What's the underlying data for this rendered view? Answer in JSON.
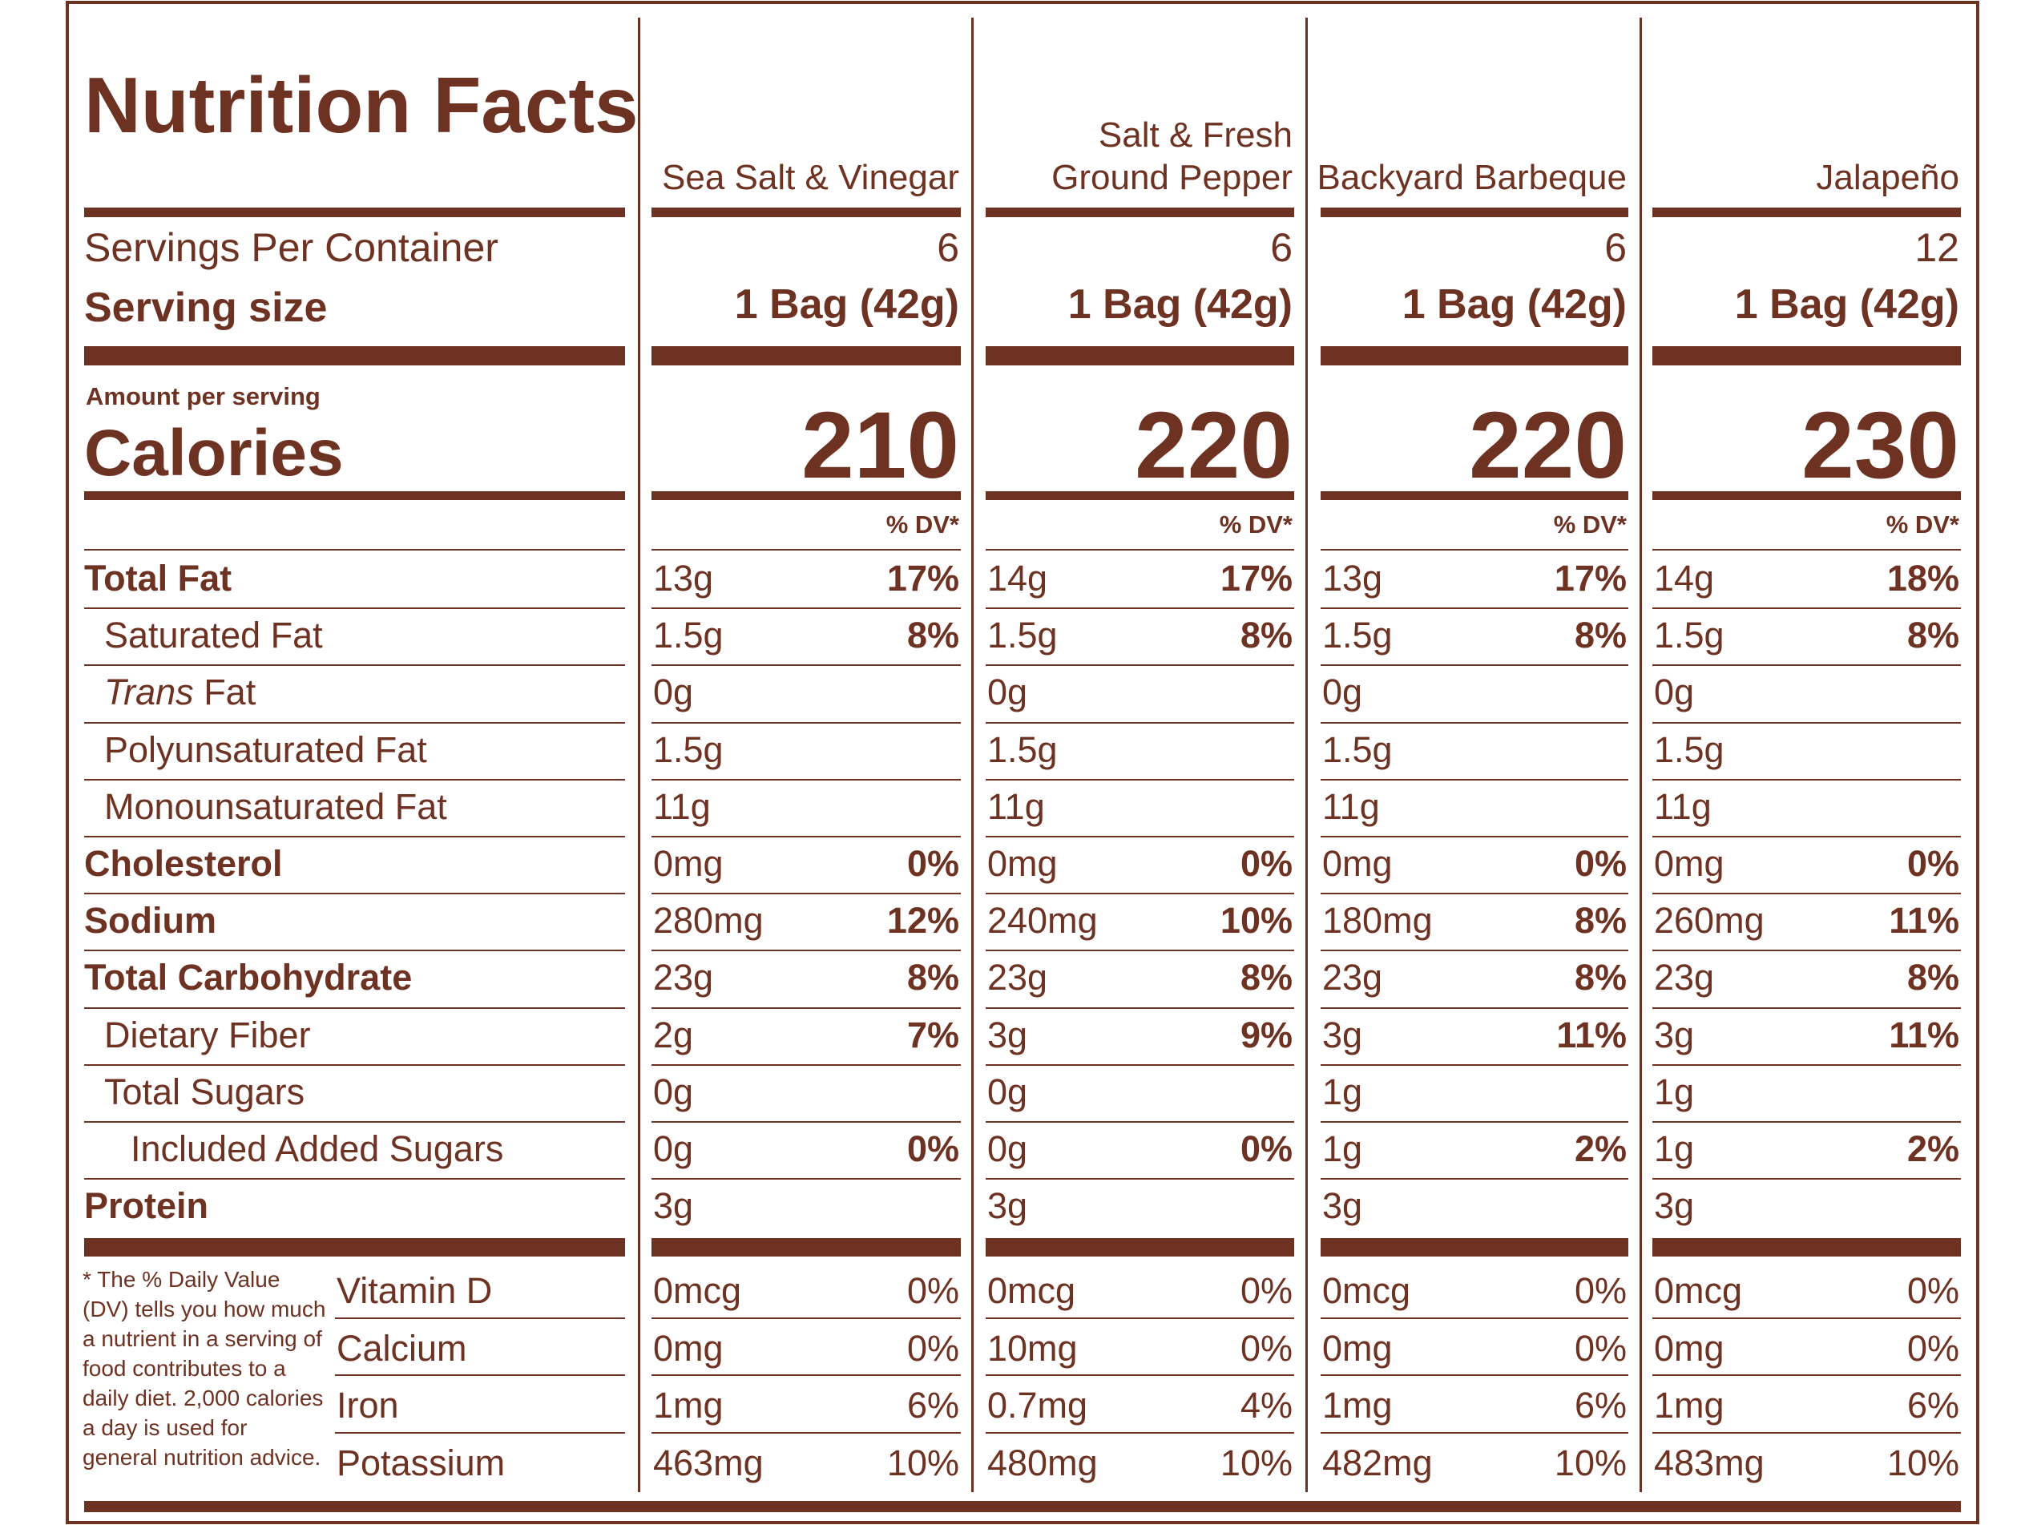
{
  "title": "Nutrition Facts",
  "servings_label": "Servings Per Container",
  "serving_size_label": "Serving size",
  "amount_per_serving": "Amount per serving",
  "calories_label": "Calories",
  "dv_header": "% DV*",
  "colors": {
    "ink": "#6e3223",
    "background": "#ffffff"
  },
  "products": [
    {
      "flavor_line1": "",
      "flavor_line2": "Sea Salt & Vinegar",
      "servings": "6",
      "serving_size": "1 Bag (42g)",
      "calories": "210"
    },
    {
      "flavor_line1": "Salt & Fresh",
      "flavor_line2": "Ground Pepper",
      "servings": "6",
      "serving_size": "1 Bag (42g)",
      "calories": "220"
    },
    {
      "flavor_line1": "",
      "flavor_line2": "Backyard Barbeque",
      "servings": "6",
      "serving_size": "1 Bag (42g)",
      "calories": "220"
    },
    {
      "flavor_line1": "",
      "flavor_line2": "Jalapeño",
      "servings": "12",
      "serving_size": "1 Bag (42g)",
      "calories": "230"
    }
  ],
  "nutrients": [
    {
      "label": "Total Fat",
      "style": "bold",
      "values": [
        [
          "13g",
          "17%"
        ],
        [
          "14g",
          "17%"
        ],
        [
          "13g",
          "17%"
        ],
        [
          "14g",
          "18%"
        ]
      ]
    },
    {
      "label": "Saturated Fat",
      "style": "indent",
      "values": [
        [
          "1.5g",
          "8%"
        ],
        [
          "1.5g",
          "8%"
        ],
        [
          "1.5g",
          "8%"
        ],
        [
          "1.5g",
          "8%"
        ]
      ]
    },
    {
      "label_italic": "Trans",
      "label": " Fat",
      "style": "indent",
      "values": [
        [
          "0g",
          ""
        ],
        [
          "0g",
          ""
        ],
        [
          "0g",
          ""
        ],
        [
          "0g",
          ""
        ]
      ]
    },
    {
      "label": "Polyunsaturated Fat",
      "style": "indent",
      "values": [
        [
          "1.5g",
          ""
        ],
        [
          "1.5g",
          ""
        ],
        [
          "1.5g",
          ""
        ],
        [
          "1.5g",
          ""
        ]
      ]
    },
    {
      "label": "Monounsaturated Fat",
      "style": "indent",
      "values": [
        [
          "11g",
          ""
        ],
        [
          "11g",
          ""
        ],
        [
          "11g",
          ""
        ],
        [
          "11g",
          ""
        ]
      ]
    },
    {
      "label": "Cholesterol",
      "style": "bold",
      "values": [
        [
          "0mg",
          "0%"
        ],
        [
          "0mg",
          "0%"
        ],
        [
          "0mg",
          "0%"
        ],
        [
          "0mg",
          "0%"
        ]
      ]
    },
    {
      "label": "Sodium",
      "style": "bold",
      "values": [
        [
          "280mg",
          "12%"
        ],
        [
          "240mg",
          "10%"
        ],
        [
          "180mg",
          "8%"
        ],
        [
          "260mg",
          "11%"
        ]
      ]
    },
    {
      "label": "Total Carbohydrate",
      "style": "bold",
      "values": [
        [
          "23g",
          "8%"
        ],
        [
          "23g",
          "8%"
        ],
        [
          "23g",
          "8%"
        ],
        [
          "23g",
          "8%"
        ]
      ]
    },
    {
      "label": "Dietary Fiber",
      "style": "indent",
      "values": [
        [
          "2g",
          "7%"
        ],
        [
          "3g",
          "9%"
        ],
        [
          "3g",
          "11%"
        ],
        [
          "3g",
          "11%"
        ]
      ]
    },
    {
      "label": "Total Sugars",
      "style": "indent",
      "values": [
        [
          "0g",
          ""
        ],
        [
          "0g",
          ""
        ],
        [
          "1g",
          ""
        ],
        [
          "1g",
          ""
        ]
      ]
    },
    {
      "label": "Included Added Sugars",
      "style": "indent2",
      "values": [
        [
          "0g",
          "0%"
        ],
        [
          "0g",
          "0%"
        ],
        [
          "1g",
          "2%"
        ],
        [
          "1g",
          "2%"
        ]
      ]
    },
    {
      "label": "Protein",
      "style": "bold",
      "values": [
        [
          "3g",
          ""
        ],
        [
          "3g",
          ""
        ],
        [
          "3g",
          ""
        ],
        [
          "3g",
          ""
        ]
      ]
    }
  ],
  "vitamins": [
    {
      "label": "Vitamin D",
      "values": [
        [
          "0mcg",
          "0%"
        ],
        [
          "0mcg",
          "0%"
        ],
        [
          "0mcg",
          "0%"
        ],
        [
          "0mcg",
          "0%"
        ]
      ]
    },
    {
      "label": "Calcium",
      "values": [
        [
          "0mg",
          "0%"
        ],
        [
          "10mg",
          "0%"
        ],
        [
          "0mg",
          "0%"
        ],
        [
          "0mg",
          "0%"
        ]
      ]
    },
    {
      "label": "Iron",
      "values": [
        [
          "1mg",
          "6%"
        ],
        [
          "0.7mg",
          "4%"
        ],
        [
          "1mg",
          "6%"
        ],
        [
          "1mg",
          "6%"
        ]
      ]
    },
    {
      "label": "Potassium",
      "values": [
        [
          "463mg",
          "10%"
        ],
        [
          "480mg",
          "10%"
        ],
        [
          "482mg",
          "10%"
        ],
        [
          "483mg",
          "10%"
        ]
      ]
    }
  ],
  "footnote": "* The % Daily Value (DV) tells you how much a nutrient in a serving of food contributes to a daily diet. 2,000 calories a day is used for general nutrition advice."
}
